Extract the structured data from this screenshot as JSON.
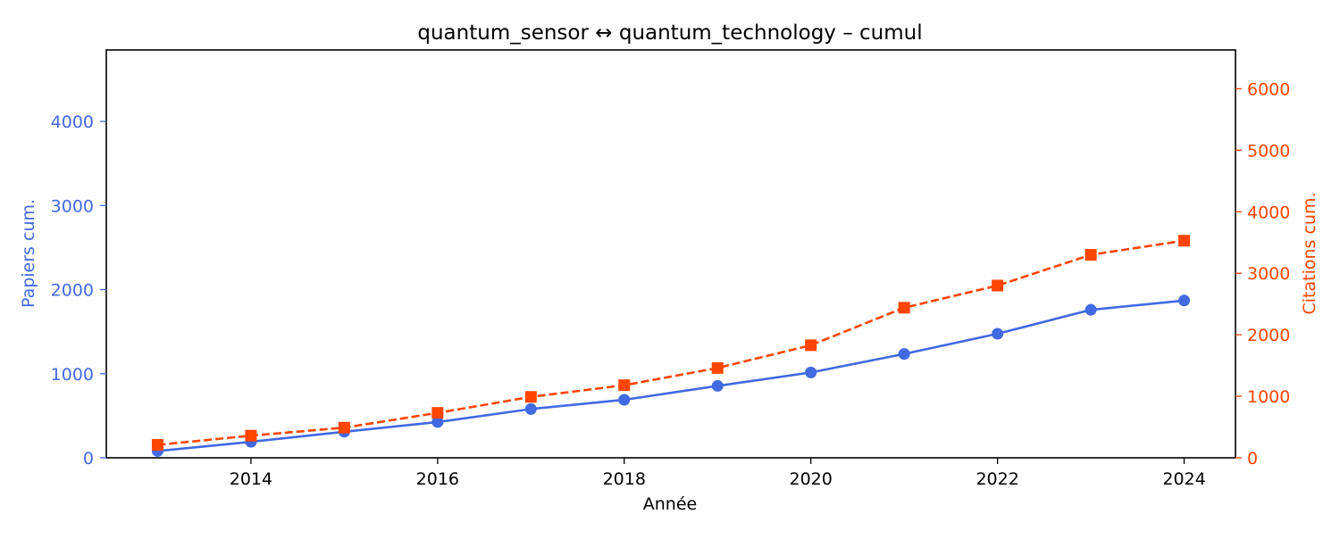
{
  "chart_data": {
    "type": "line",
    "title": "quantum_sensor  ↔  quantum_technology  –  cumul",
    "xlabel": "Année",
    "ylabel": "Papiers cum.",
    "y2label": "Citations cum.",
    "x": [
      2013,
      2014,
      2015,
      2016,
      2017,
      2018,
      2019,
      2020,
      2021,
      2022,
      2023,
      2024
    ],
    "xlim": [
      2012.45,
      2024.55
    ],
    "ylim": [
      0,
      4850
    ],
    "y2lim": [
      0,
      6630
    ],
    "xticks": [
      2014,
      2016,
      2018,
      2020,
      2022,
      2024
    ],
    "yticks": [
      0,
      1000,
      2000,
      3000,
      4000
    ],
    "y2ticks": [
      0,
      1000,
      2000,
      3000,
      4000,
      5000,
      6000
    ],
    "grid": false,
    "series": [
      {
        "axis": "left",
        "color": "#4169e1",
        "style": "solid",
        "marker": "circle",
        "values": [
          80,
          190,
          310,
          425,
          580,
          690,
          855,
          1015,
          1235,
          1475,
          1760,
          1870
        ]
      },
      {
        "axis": "right",
        "color": "#ff4500",
        "style": "dashed",
        "marker": "square",
        "values": [
          210,
          360,
          490,
          730,
          990,
          1180,
          1460,
          1830,
          2440,
          2800,
          3300,
          3530
        ]
      }
    ]
  }
}
